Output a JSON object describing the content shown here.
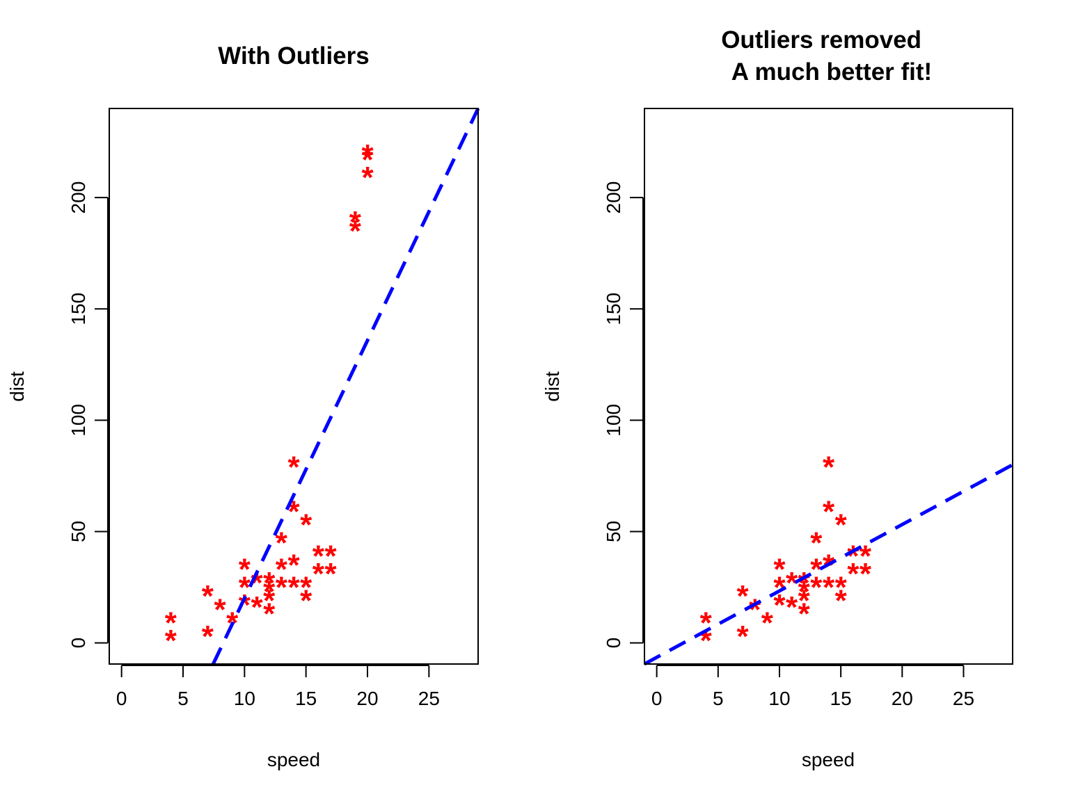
{
  "chart_data": [
    {
      "type": "scatter",
      "title": "With Outliers",
      "xlabel": "speed",
      "ylabel": "dist",
      "xlim": [
        -1,
        29
      ],
      "ylim": [
        -9.5,
        240
      ],
      "xticks": [
        0,
        5,
        10,
        15,
        20,
        25
      ],
      "yticks": [
        0,
        50,
        100,
        150,
        200
      ],
      "xtick_labels": [
        "0",
        "5",
        "10",
        "15",
        "20",
        "25"
      ],
      "ytick_labels": [
        "0",
        "50",
        "100",
        "150",
        "200"
      ],
      "grid": false,
      "marker": "*",
      "point_color": "#ff0000",
      "line_color": "#0000ff",
      "points": [
        [
          4,
          2
        ],
        [
          4,
          10
        ],
        [
          7,
          4
        ],
        [
          7,
          22
        ],
        [
          8,
          16
        ],
        [
          9,
          10
        ],
        [
          10,
          18
        ],
        [
          10,
          26
        ],
        [
          10,
          34
        ],
        [
          11,
          17
        ],
        [
          11,
          28
        ],
        [
          12,
          14
        ],
        [
          12,
          20
        ],
        [
          12,
          24
        ],
        [
          12,
          28
        ],
        [
          13,
          26
        ],
        [
          13,
          34
        ],
        [
          13,
          46
        ],
        [
          14,
          26
        ],
        [
          14,
          36
        ],
        [
          14,
          60
        ],
        [
          14,
          80
        ],
        [
          15,
          20
        ],
        [
          15,
          26
        ],
        [
          15,
          54
        ],
        [
          16,
          32
        ],
        [
          16,
          40
        ],
        [
          17,
          32
        ],
        [
          17,
          40
        ],
        [
          19,
          186
        ],
        [
          19,
          190
        ],
        [
          20,
          210
        ],
        [
          20,
          218
        ],
        [
          20,
          220
        ]
      ],
      "fit_line": {
        "style": "dashed",
        "points": [
          [
            7.45,
            -9.5
          ],
          [
            29,
            240
          ]
        ]
      }
    },
    {
      "type": "scatter",
      "title": "Outliers removed \n A much better fit!",
      "title_lines": [
        "Outliers removed",
        "A much better fit!"
      ],
      "xlabel": "speed",
      "ylabel": "dist",
      "xlim": [
        -1,
        29
      ],
      "ylim": [
        -9.5,
        240
      ],
      "xticks": [
        0,
        5,
        10,
        15,
        20,
        25
      ],
      "yticks": [
        0,
        50,
        100,
        150,
        200
      ],
      "xtick_labels": [
        "0",
        "5",
        "10",
        "15",
        "20",
        "25"
      ],
      "ytick_labels": [
        "0",
        "50",
        "100",
        "150",
        "200"
      ],
      "grid": false,
      "marker": "*",
      "point_color": "#ff0000",
      "line_color": "#0000ff",
      "points": [
        [
          4,
          2
        ],
        [
          4,
          10
        ],
        [
          7,
          4
        ],
        [
          7,
          22
        ],
        [
          8,
          16
        ],
        [
          9,
          10
        ],
        [
          10,
          18
        ],
        [
          10,
          26
        ],
        [
          10,
          34
        ],
        [
          11,
          17
        ],
        [
          11,
          28
        ],
        [
          12,
          14
        ],
        [
          12,
          20
        ],
        [
          12,
          24
        ],
        [
          12,
          28
        ],
        [
          13,
          26
        ],
        [
          13,
          34
        ],
        [
          13,
          46
        ],
        [
          14,
          26
        ],
        [
          14,
          36
        ],
        [
          14,
          60
        ],
        [
          14,
          80
        ],
        [
          15,
          20
        ],
        [
          15,
          26
        ],
        [
          15,
          54
        ],
        [
          16,
          32
        ],
        [
          16,
          40
        ],
        [
          17,
          32
        ],
        [
          17,
          40
        ]
      ],
      "fit_line": {
        "style": "dashed",
        "points": [
          [
            -1,
            -9.5
          ],
          [
            29,
            80
          ]
        ]
      }
    }
  ]
}
